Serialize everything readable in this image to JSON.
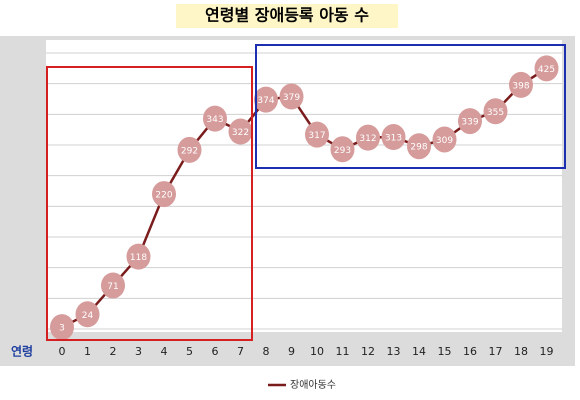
{
  "chart_data": {
    "type": "line",
    "title": "연령별 장애등록 아동 수",
    "x_label": "연령",
    "categories": [
      "0",
      "1",
      "2",
      "3",
      "4",
      "5",
      "6",
      "7",
      "8",
      "9",
      "10",
      "11",
      "12",
      "13",
      "14",
      "15",
      "16",
      "17",
      "18",
      "19"
    ],
    "series": [
      {
        "name": "장애아동수",
        "color": "#7b1c1c",
        "marker_color": "#d69b9b",
        "values": [
          3,
          24,
          71,
          118,
          220,
          292,
          343,
          322,
          374,
          379,
          317,
          293,
          312,
          313,
          298,
          309,
          339,
          355,
          398,
          425
        ]
      }
    ],
    "ylim": [
      0,
      450
    ],
    "yticks": [
      0,
      50,
      100,
      150,
      200,
      250,
      300,
      350,
      400,
      450
    ],
    "grid": true,
    "legend": "bottom"
  }
}
